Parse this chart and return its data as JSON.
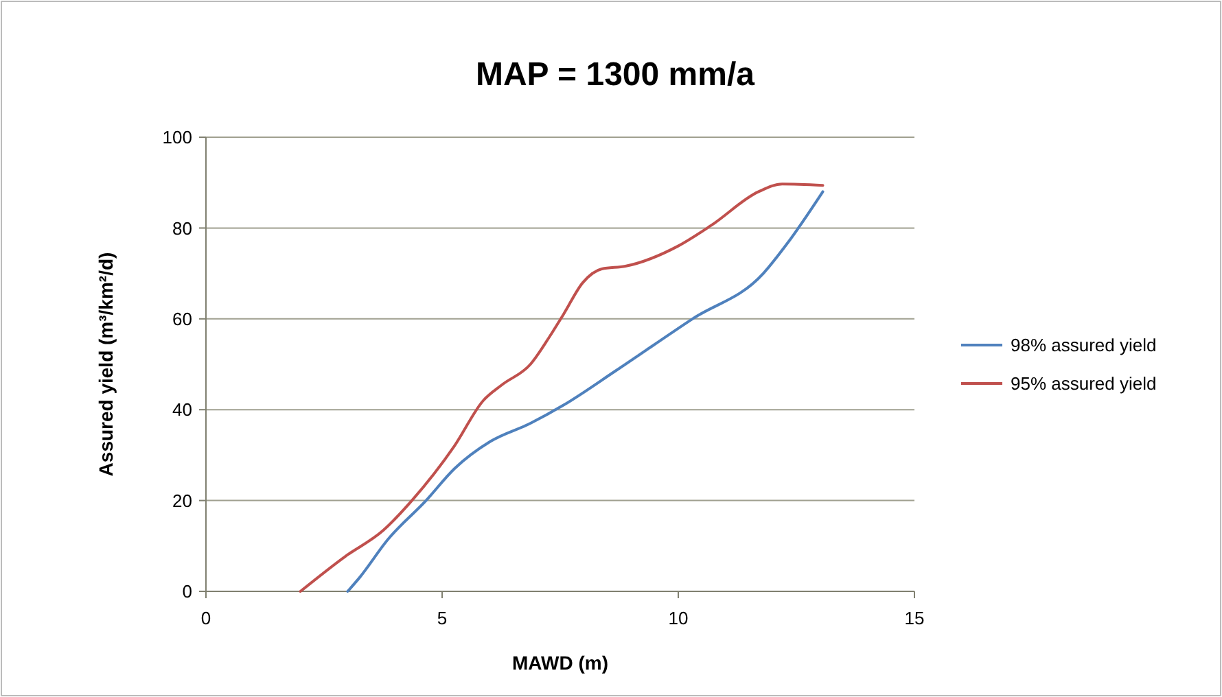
{
  "chart_data": {
    "type": "line",
    "title": "MAP = 1300 mm/a",
    "xlabel": "MAWD (m)",
    "ylabel": "Assured yield (m³/km²/d)",
    "xlim": [
      0,
      15
    ],
    "xticks": [
      0,
      5,
      10,
      15
    ],
    "ylim": [
      0,
      100
    ],
    "yticks": [
      0,
      20,
      40,
      60,
      80,
      100
    ],
    "grid": "y",
    "legend": "right",
    "marker": "none",
    "line_style": "solid",
    "series": [
      {
        "name": "98% assured yield",
        "color": "#4f81bd",
        "x": [
          3.0,
          3.25,
          3.85,
          4.66,
          5.26,
          6.02,
          6.87,
          7.57,
          8.68,
          10.3,
          11.8,
          12.3,
          13.06
        ],
        "values": [
          0,
          3,
          11.4,
          20,
          27,
          33,
          37,
          41,
          48.6,
          60,
          70,
          76.5,
          88
        ]
      },
      {
        "name": "95% assured yield",
        "color": "#c0504d",
        "x": [
          2.0,
          2.95,
          3.75,
          4.36,
          5.26,
          5.87,
          6.27,
          6.87,
          7.27,
          7.57,
          7.98,
          8.38,
          8.88,
          9.99,
          10.7,
          11.7,
          12.2,
          13.06
        ],
        "values": [
          0,
          7.7,
          13.4,
          20,
          32,
          42,
          45.5,
          50,
          56,
          61,
          68,
          71,
          71.6,
          76,
          80.6,
          88,
          89.7,
          89.4
        ]
      }
    ]
  }
}
